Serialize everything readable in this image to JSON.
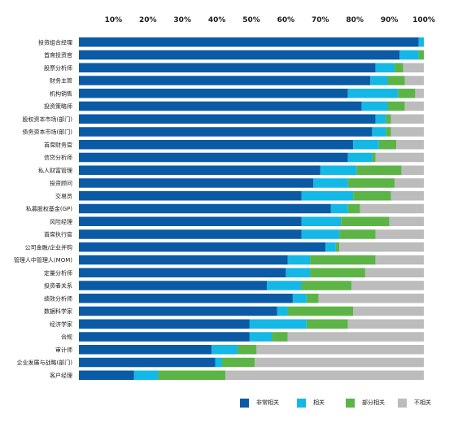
{
  "chart_data": {
    "type": "bar",
    "orientation": "horizontal",
    "stacked": true,
    "xlim": [
      0,
      100
    ],
    "x_ticks": [
      "10%",
      "20%",
      "30%",
      "40%",
      "50%",
      "60%",
      "70%",
      "80%",
      "90%",
      "100%"
    ],
    "categories": [
      "投资组合经理",
      "首席投资官",
      "股票分析师",
      "财务主管",
      "机构销售",
      "投资策略师",
      "股权资本市场(部门)",
      "债务资本市场(部门)",
      "首席财务官",
      "信贷分析师",
      "私人财富管理",
      "投资顾问",
      "交易员",
      "私募股权基金(GP)",
      "风险经理",
      "首席执行官",
      "公司金融/企业并购",
      "管理人中管理人(MOM)",
      "定量分析师",
      "投资者关系",
      "绩效分析师",
      "数据科学家",
      "经济学家",
      "合规",
      "审计师",
      "企业发展与战略(部门)",
      "客户经理"
    ],
    "category_labels": [
      "投资组合经理",
      "首席投资官",
      "股票分析师",
      "财务主管",
      "机构销售",
      "投资策略师",
      "股权资本市场(部门)",
      "债务资本市场(部门)",
      "首席财务官",
      "信贷分析师",
      "私人财富管理",
      "投资顾问",
      "交易员",
      "私募股权基金(GP)",
      "风险经理",
      "首席执行官",
      "公司金融/企业并购",
      "管理人中管理人(MOM)",
      "定量分析师",
      "投资者关系",
      "绩效分析师",
      "数据科学家",
      "经济学家",
      "合规",
      "审计师",
      "企业发展与战略(部门)",
      "客户经理"
    ],
    "series": [
      {
        "name": "非常相关",
        "color": "#0b5aa5",
        "values": [
          98.5,
          93,
          86,
          84.5,
          78,
          82,
          86,
          85,
          79.5,
          78,
          70,
          68,
          64.5,
          73,
          64.5,
          64.5,
          71.5,
          60.5,
          60,
          54.5,
          62,
          57.5,
          49.5,
          49.5,
          38.5,
          39.5,
          16
        ]
      },
      {
        "name": "相关",
        "color": "#14b8e6",
        "values": [
          1.5,
          5.5,
          5.5,
          5,
          14.5,
          7.5,
          3,
          4,
          7.5,
          7,
          10.5,
          10,
          15,
          5,
          11.5,
          11,
          3,
          6.5,
          7,
          10,
          4,
          3,
          16.5,
          6.5,
          7.5,
          2,
          7
        ]
      },
      {
        "name": "部分相关",
        "color": "#5cb446",
        "values": [
          0,
          1.5,
          2.5,
          5,
          5,
          5,
          1.5,
          1.5,
          5,
          1,
          13,
          13.5,
          11,
          3.5,
          14,
          10.5,
          1,
          19,
          16,
          14.5,
          3.5,
          19,
          12,
          4.5,
          5.5,
          9.5,
          19.5
        ]
      },
      {
        "name": "不相关",
        "color": "#bcbcbc",
        "values": [
          0,
          0,
          6,
          5.5,
          2.5,
          5.5,
          9.5,
          9.5,
          8,
          14,
          6.5,
          8.5,
          9.5,
          18.5,
          10,
          14,
          24.5,
          14,
          17,
          21,
          30.5,
          20.5,
          22,
          39.5,
          48.5,
          49,
          57.5
        ]
      }
    ],
    "legend_position": "bottom-right",
    "grid": false
  }
}
